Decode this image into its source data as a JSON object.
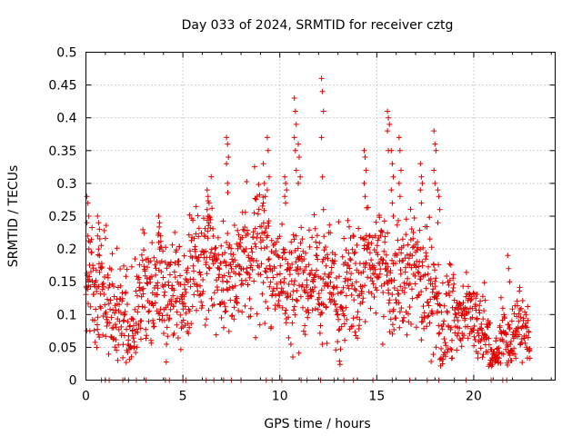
{
  "chart_data": {
    "type": "scatter",
    "title": "Day 033 of 2024, SRMTID for receiver cztg",
    "xlabel": "GPS time / hours",
    "ylabel": "SRMTID / TECUs",
    "xlim": [
      0,
      24.2
    ],
    "ylim": [
      0,
      0.5
    ],
    "xticks": [
      0,
      5,
      10,
      15,
      20
    ],
    "xtick_labels": [
      "0",
      "5",
      "10",
      "15",
      "20"
    ],
    "yticks": [
      0,
      0.05,
      0.1,
      0.15,
      0.2,
      0.25,
      0.3,
      0.35,
      0.4,
      0.45,
      0.5
    ],
    "ytick_labels": [
      "0",
      "0.05",
      "0.1",
      "0.15",
      "0.2",
      "0.25",
      "0.3",
      "0.35",
      "0.4",
      "0.45",
      "0.5"
    ],
    "grid": true,
    "marker": "plus",
    "color": "#e00000",
    "trend": {
      "x": [
        0,
        0.5,
        1,
        1.5,
        2,
        3,
        4,
        5,
        6,
        7,
        8,
        9,
        10,
        11,
        12,
        13,
        14,
        15,
        16,
        17,
        18,
        19,
        20,
        21,
        22,
        23
      ],
      "y": [
        0.12,
        0.11,
        0.11,
        0.12,
        0.1,
        0.11,
        0.13,
        0.15,
        0.16,
        0.17,
        0.18,
        0.18,
        0.17,
        0.15,
        0.14,
        0.15,
        0.14,
        0.18,
        0.16,
        0.15,
        0.12,
        0.1,
        0.08,
        0.06,
        0.06,
        0.05
      ]
    },
    "spread": 0.045,
    "points_count": 1600,
    "series_spikes": [
      {
        "x": 0.1,
        "values": [
          0.28,
          0.27,
          0.25,
          0.24,
          0.22,
          0.2
        ]
      },
      {
        "x": 0.65,
        "values": [
          0.25,
          0.24,
          0.23,
          0.22,
          0.2,
          0.19
        ]
      },
      {
        "x": 3.8,
        "values": [
          0.25,
          0.24,
          0.22,
          0.21,
          0.2
        ]
      },
      {
        "x": 6.3,
        "values": [
          0.29,
          0.28,
          0.27,
          0.26,
          0.25,
          0.24
        ]
      },
      {
        "x": 7.3,
        "values": [
          0.37,
          0.36,
          0.34,
          0.33,
          0.3
        ]
      },
      {
        "x": 9.2,
        "values": [
          0.33,
          0.3,
          0.28,
          0.27
        ]
      },
      {
        "x": 9.4,
        "values": [
          0.37,
          0.35,
          0.31,
          0.29
        ]
      },
      {
        "x": 10.3,
        "values": [
          0.31,
          0.3,
          0.29,
          0.28,
          0.27
        ]
      },
      {
        "x": 10.8,
        "values": [
          0.43,
          0.41,
          0.39,
          0.37,
          0.35,
          0.32
        ]
      },
      {
        "x": 11.0,
        "values": [
          0.36,
          0.34,
          0.31,
          0.3
        ]
      },
      {
        "x": 12.2,
        "values": [
          0.46,
          0.44,
          0.41,
          0.37,
          0.31,
          0.26
        ]
      },
      {
        "x": 14.4,
        "values": [
          0.35,
          0.34,
          0.32,
          0.3,
          0.28
        ]
      },
      {
        "x": 15.6,
        "values": [
          0.41,
          0.4,
          0.39,
          0.38,
          0.35
        ]
      },
      {
        "x": 15.8,
        "values": [
          0.35,
          0.33,
          0.31,
          0.29,
          0.27,
          0.25
        ]
      },
      {
        "x": 16.2,
        "values": [
          0.37,
          0.35,
          0.32,
          0.3,
          0.28
        ]
      },
      {
        "x": 17.3,
        "values": [
          0.33,
          0.31,
          0.3,
          0.29,
          0.27
        ]
      },
      {
        "x": 18.0,
        "values": [
          0.38,
          0.36,
          0.35,
          0.32,
          0.3
        ]
      },
      {
        "x": 18.2,
        "values": [
          0.29,
          0.28,
          0.26,
          0.24
        ]
      },
      {
        "x": 21.8,
        "values": [
          0.19,
          0.17,
          0.15
        ]
      }
    ],
    "zero_points_x": [
      0.8,
      1.0,
      1.2,
      1.9,
      2.2,
      2.6,
      3.1,
      4.1,
      4.3,
      5.0,
      5.15,
      6.2,
      6.6,
      7.1,
      7.5,
      8.0,
      9.3,
      9.6,
      10.1,
      11.1,
      11.4,
      12.1,
      12.8,
      13.3,
      13.8,
      14.8,
      15.8,
      16.7,
      17.6,
      18.2,
      19.0,
      19.6,
      20.9,
      21.5,
      21.7
    ]
  }
}
